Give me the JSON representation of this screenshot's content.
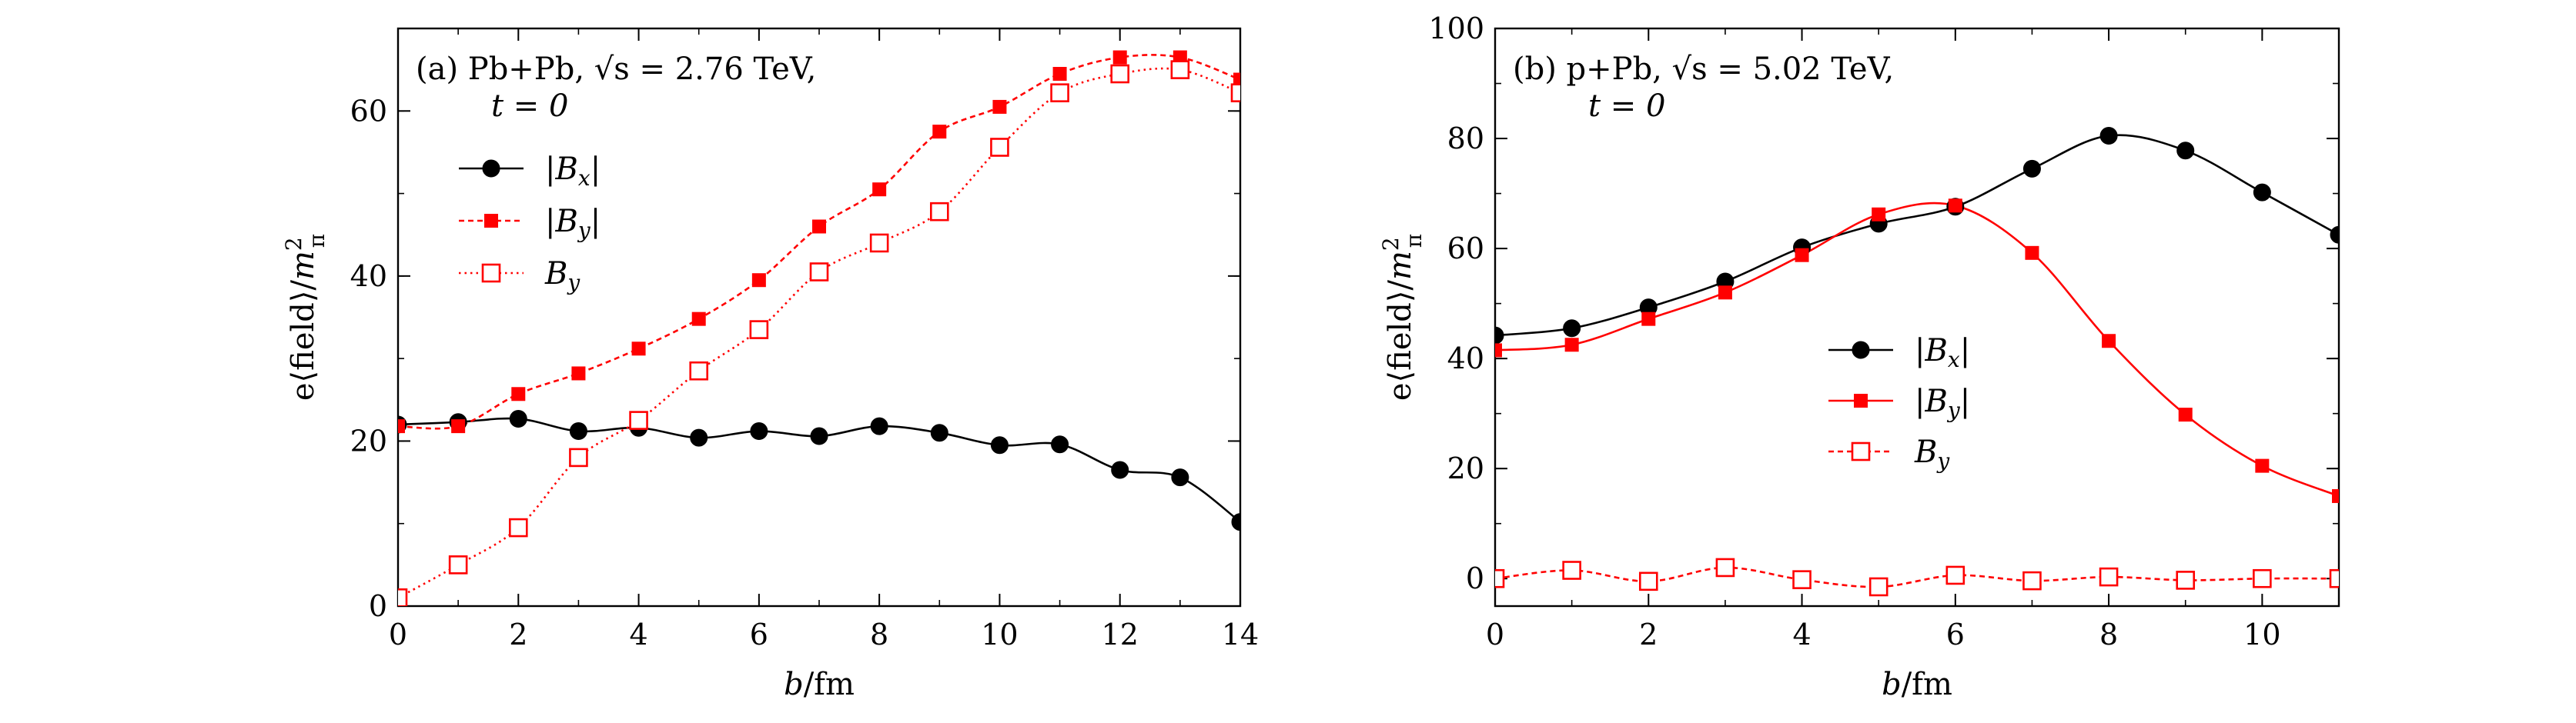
{
  "chart_data": [
    {
      "type": "line",
      "panel": "(a)",
      "title_line1": "(a) Pb+Pb, √s = 2.76 TeV,",
      "title_line2": "t = 0",
      "xlabel": "b/fm",
      "ylabel": "e⟨field⟩/m²π",
      "xlim": [
        0,
        14
      ],
      "ylim": [
        0,
        70
      ],
      "xticks": [
        0,
        2,
        4,
        6,
        8,
        10,
        12,
        14
      ],
      "yticks": [
        0,
        20,
        40,
        60
      ],
      "legend_position": "upper-left",
      "series": [
        {
          "name": "|Bx|",
          "legend_label": "|B_x|",
          "color": "#000000",
          "marker": "filled-circle",
          "line": "solid",
          "x": [
            0,
            1,
            2,
            3,
            4,
            5,
            6,
            7,
            8,
            9,
            10,
            11,
            12,
            13,
            14
          ],
          "values": [
            22,
            22.3,
            22.7,
            21.2,
            21.6,
            20.4,
            21.2,
            20.6,
            21.8,
            21,
            19.5,
            19.6,
            16.5,
            15.6,
            10.2
          ]
        },
        {
          "name": "|By|",
          "legend_label": "|B_y|",
          "color": "#ff0000",
          "marker": "filled-square",
          "line": "dashed",
          "x": [
            0,
            1,
            2,
            3,
            4,
            5,
            6,
            7,
            8,
            9,
            10,
            11,
            12,
            13,
            14
          ],
          "values": [
            21.8,
            21.8,
            25.7,
            28.2,
            31.2,
            34.8,
            39.5,
            46,
            50.5,
            57.5,
            60.5,
            64.5,
            66.5,
            66.5,
            63.8
          ]
        },
        {
          "name": "By",
          "legend_label": "B_y",
          "color": "#ff0000",
          "marker": "open-square",
          "line": "dotted",
          "x": [
            0,
            1,
            2,
            3,
            4,
            5,
            6,
            7,
            8,
            9,
            10,
            11,
            12,
            13,
            14
          ],
          "values": [
            1,
            5,
            9.5,
            18,
            22.5,
            28.5,
            33.5,
            40.5,
            44,
            47.8,
            55.6,
            62.2,
            64.5,
            65,
            62.2
          ]
        }
      ]
    },
    {
      "type": "line",
      "panel": "(b)",
      "title_line1": "(b) p+Pb, √s = 5.02 TeV,",
      "title_line2": "t = 0",
      "xlabel": "b/fm",
      "ylabel": "e⟨field⟩/m²π",
      "xlim": [
        0,
        11
      ],
      "ylim": [
        -5,
        100
      ],
      "xticks": [
        0,
        2,
        4,
        6,
        8,
        10
      ],
      "yticks": [
        0,
        20,
        40,
        60,
        80,
        100
      ],
      "legend_position": "center-right",
      "series": [
        {
          "name": "|Bx|",
          "legend_label": "|B_x|",
          "color": "#000000",
          "marker": "filled-circle",
          "line": "solid",
          "x": [
            0,
            1,
            2,
            3,
            4,
            5,
            6,
            7,
            8,
            9,
            10,
            11
          ],
          "values": [
            44.2,
            45.5,
            49.3,
            54,
            60.2,
            64.5,
            67.6,
            74.5,
            80.5,
            77.8,
            70.2,
            62.5
          ]
        },
        {
          "name": "|By|",
          "legend_label": "|B_y|",
          "color": "#ff0000",
          "marker": "filled-square",
          "line": "solid",
          "x": [
            0,
            1,
            2,
            3,
            4,
            5,
            6,
            7,
            8,
            9,
            10,
            11
          ],
          "values": [
            41.5,
            42.5,
            47.2,
            52,
            58.8,
            66.2,
            67.8,
            59.2,
            43.2,
            29.8,
            20.5,
            15
          ]
        },
        {
          "name": "By",
          "legend_label": "B_y",
          "color": "#ff0000",
          "marker": "open-square",
          "line": "dashed",
          "x": [
            0,
            1,
            2,
            3,
            4,
            5,
            6,
            7,
            8,
            9,
            10,
            11
          ],
          "values": [
            0,
            1.5,
            -0.5,
            2,
            -0.2,
            -1.5,
            0.6,
            -0.4,
            0.3,
            -0.3,
            0,
            0
          ]
        }
      ]
    }
  ]
}
